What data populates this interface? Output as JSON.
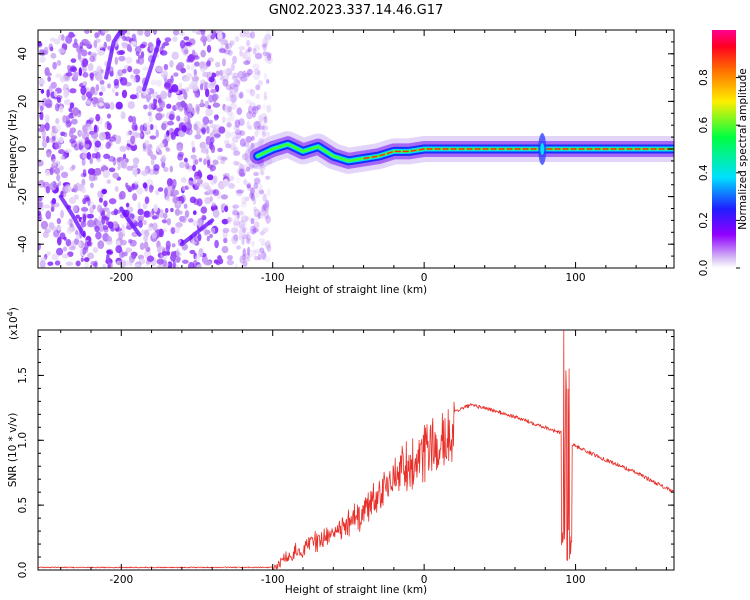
{
  "title": "GN02.2023.337.14.46.G17",
  "colors": {
    "snr_line": "#e8302a",
    "axis": "#000000",
    "background": "#ffffff"
  },
  "chart_data": [
    {
      "type": "heatmap",
      "xlabel": "Height of straight line (km)",
      "ylabel": "Frequency (Hz)",
      "xlim": [
        -255,
        165
      ],
      "ylim": [
        -50,
        50
      ],
      "xticks": [
        -200,
        -100,
        0,
        100
      ],
      "xtick_labels": [
        "-200",
        "-100",
        "0",
        "100"
      ],
      "yticks": [
        -40,
        -20,
        0,
        20,
        40
      ],
      "ytick_labels": [
        "-40",
        "-20",
        "0",
        "20",
        "40"
      ],
      "colorbar": {
        "label": "Normalized spectral amplitude",
        "range": [
          0.0,
          1.0
        ],
        "ticks": [
          0.0,
          0.2,
          0.4,
          0.6,
          0.8
        ],
        "tick_labels": [
          "0.0",
          "0.2",
          "0.4",
          "0.6",
          "0.8"
        ],
        "colormap": "rainbow (white → purple → blue → cyan → green → yellow → orange → red)"
      },
      "features": {
        "noise_region_x": [
          -255,
          -110
        ],
        "ridge": [
          [
            -110,
            -3
          ],
          [
            -100,
            0
          ],
          [
            -90,
            2
          ],
          [
            -80,
            -1
          ],
          [
            -70,
            1
          ],
          [
            -60,
            -3
          ],
          [
            -50,
            -5
          ],
          [
            -40,
            -4
          ],
          [
            -30,
            -3
          ],
          [
            -20,
            -1
          ],
          [
            -10,
            -1
          ],
          [
            0,
            0
          ],
          [
            50,
            0
          ],
          [
            100,
            0
          ],
          [
            165,
            0
          ]
        ],
        "burst_x": 78
      }
    },
    {
      "type": "line",
      "xlabel": "Height of straight line (km)",
      "ylabel": "SNR (10 * v/v)",
      "yscale_label": "(x10",
      "yscale_exp": "4",
      "yscale_close": ")",
      "xlim": [
        -255,
        165
      ],
      "ylim": [
        0,
        1.85
      ],
      "xticks": [
        -200,
        -100,
        0,
        100
      ],
      "xtick_labels": [
        "-200",
        "-100",
        "0",
        "100"
      ],
      "yticks": [
        0.0,
        0.5,
        1.0,
        1.5
      ],
      "ytick_labels": [
        "0.0",
        "0.5",
        "1.0",
        "1.5"
      ],
      "series": [
        {
          "envelope": [
            [
              -255,
              0.02
            ],
            [
              -100,
              0.02
            ],
            [
              -90,
              0.15
            ],
            [
              -60,
              0.35
            ],
            [
              -40,
              0.55
            ],
            [
              -20,
              0.85
            ],
            [
              0,
              1.05
            ],
            [
              20,
              1.22
            ],
            [
              30,
              1.27
            ],
            [
              40,
              1.25
            ],
            [
              60,
              1.18
            ],
            [
              80,
              1.1
            ],
            [
              92,
              1.05
            ],
            [
              96,
              0.98
            ],
            [
              110,
              0.9
            ],
            [
              140,
              0.75
            ],
            [
              165,
              0.6
            ]
          ],
          "spike_x": 94,
          "spike_peak": 1.85,
          "spike_min": 0.02
        }
      ]
    }
  ]
}
